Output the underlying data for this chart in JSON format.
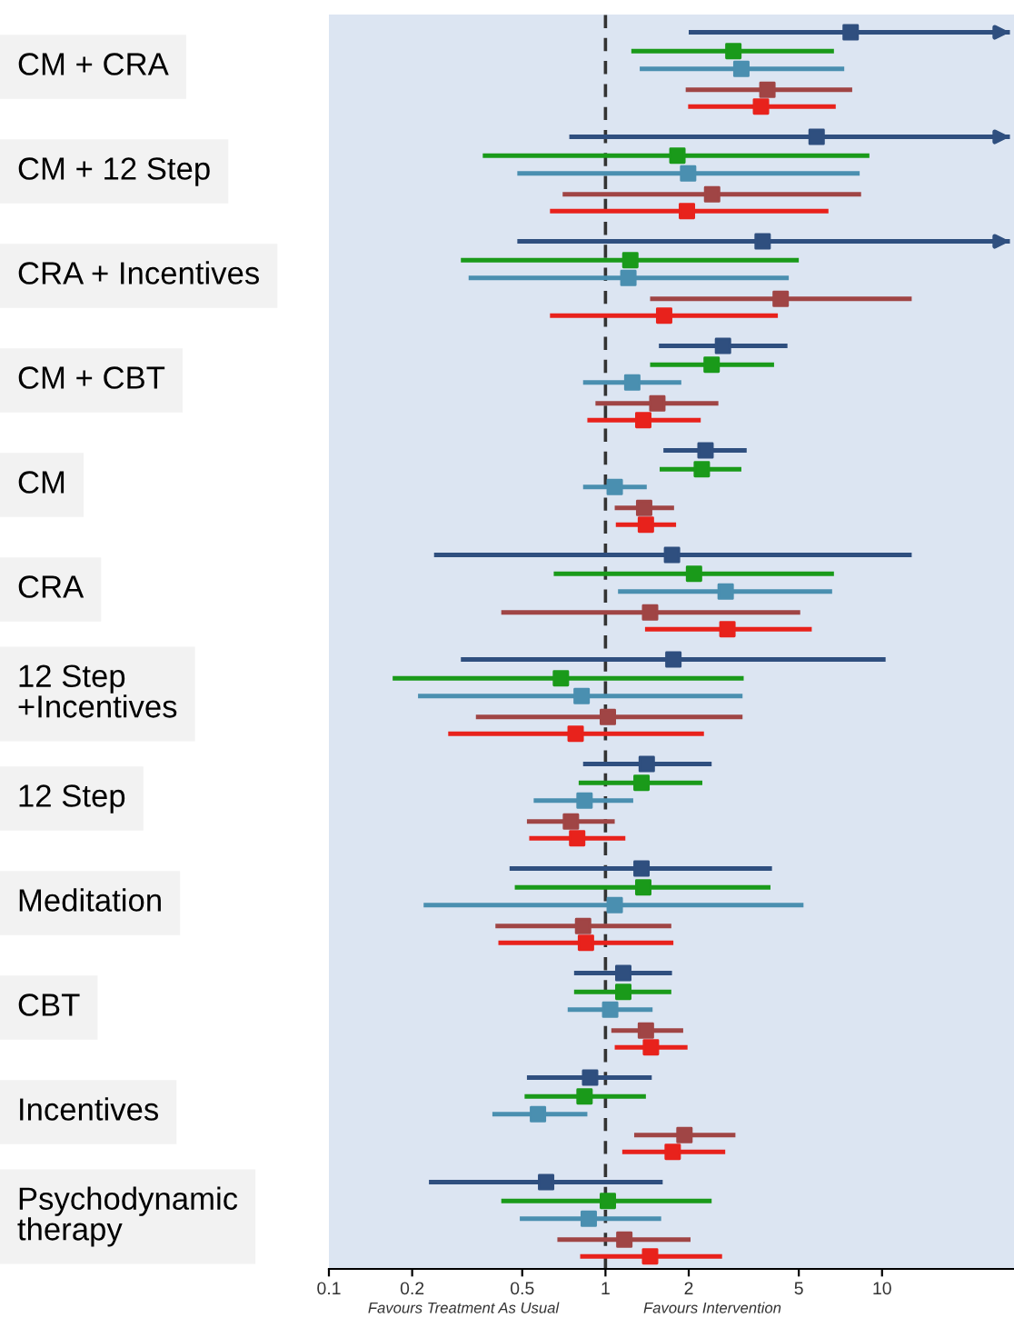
{
  "chart_data": {
    "type": "scatter",
    "orientation": "horizontal",
    "log": "x",
    "marker": "square",
    "categories": [
      "CM + CRA",
      "CM + 12 Step",
      "CRA + Incentives",
      "CM + CBT",
      "CM",
      "CRA",
      "12 Step\n+Incentives",
      "12 Step",
      "Meditation",
      "CBT",
      "Incentives",
      "Psychodynamic\ntherapy"
    ],
    "series": [
      {
        "color": "#2f4f7f",
        "values": [
          7.7,
          5.8,
          3.7,
          2.66,
          2.3,
          1.74,
          1.76,
          1.41,
          1.35,
          1.16,
          0.88,
          0.61
        ],
        "errors": [
          [
            2.0,
            29
          ],
          [
            0.74,
            29
          ],
          [
            0.48,
            29
          ],
          [
            1.56,
            4.55
          ],
          [
            1.62,
            3.24
          ],
          [
            0.24,
            12.8
          ],
          [
            0.3,
            10.3
          ],
          [
            0.83,
            2.42
          ],
          [
            0.45,
            4.0
          ],
          [
            0.77,
            1.74
          ],
          [
            0.52,
            1.47
          ],
          [
            0.23,
            1.61
          ]
        ]
      },
      {
        "color": "#1a9a1a",
        "values": [
          2.9,
          1.82,
          1.23,
          2.42,
          2.23,
          2.09,
          0.69,
          1.35,
          1.37,
          1.16,
          0.84,
          1.02
        ],
        "errors": [
          [
            1.24,
            6.7
          ],
          [
            0.36,
            9.0
          ],
          [
            0.3,
            5.0
          ],
          [
            1.45,
            4.07
          ],
          [
            1.57,
            3.1
          ],
          [
            0.65,
            6.7
          ],
          [
            0.17,
            3.16
          ],
          [
            0.8,
            2.24
          ],
          [
            0.47,
            3.95
          ],
          [
            0.77,
            1.73
          ],
          [
            0.51,
            1.4
          ],
          [
            0.42,
            2.42
          ]
        ]
      },
      {
        "color": "#4a8fb0",
        "values": [
          3.1,
          1.99,
          1.21,
          1.25,
          1.08,
          2.72,
          0.82,
          0.84,
          1.08,
          1.04,
          0.57,
          0.87
        ],
        "errors": [
          [
            1.33,
            7.3
          ],
          [
            0.48,
            8.3
          ],
          [
            0.32,
            4.6
          ],
          [
            0.83,
            1.88
          ],
          [
            0.83,
            1.41
          ],
          [
            1.11,
            6.6
          ],
          [
            0.21,
            3.13
          ],
          [
            0.55,
            1.26
          ],
          [
            0.22,
            5.2
          ],
          [
            0.73,
            1.48
          ],
          [
            0.39,
            0.86
          ],
          [
            0.49,
            1.59
          ]
        ]
      },
      {
        "color": "#a04545",
        "values": [
          3.85,
          2.43,
          4.3,
          1.54,
          1.38,
          1.45,
          1.02,
          0.75,
          0.83,
          1.4,
          1.93,
          1.17
        ],
        "errors": [
          [
            1.95,
            7.8
          ],
          [
            0.7,
            8.4
          ],
          [
            1.45,
            12.8
          ],
          [
            0.92,
            2.56
          ],
          [
            1.08,
            1.77
          ],
          [
            0.42,
            5.06
          ],
          [
            0.34,
            3.13
          ],
          [
            0.52,
            1.08
          ],
          [
            0.4,
            1.73
          ],
          [
            1.05,
            1.91
          ],
          [
            1.27,
            2.95
          ],
          [
            0.67,
            2.03
          ]
        ]
      },
      {
        "color": "#e8221c",
        "values": [
          3.65,
          1.97,
          1.63,
          1.37,
          1.4,
          2.76,
          0.78,
          0.79,
          0.85,
          1.46,
          1.75,
          1.45
        ],
        "errors": [
          [
            1.99,
            6.8
          ],
          [
            0.63,
            6.4
          ],
          [
            0.63,
            4.2
          ],
          [
            0.86,
            2.21
          ],
          [
            1.09,
            1.8
          ],
          [
            1.39,
            5.57
          ],
          [
            0.27,
            2.27
          ],
          [
            0.53,
            1.18
          ],
          [
            0.41,
            1.76
          ],
          [
            1.08,
            1.98
          ],
          [
            1.15,
            2.71
          ],
          [
            0.81,
            2.64
          ]
        ]
      }
    ],
    "xlim": [
      0.1,
      30
    ],
    "xticks": [
      0.1,
      0.2,
      0.5,
      1,
      2,
      5,
      10
    ],
    "tick_labels": "x",
    "grid": false,
    "legend": false,
    "ref_lines": [
      {
        "axis": "x",
        "value": 1,
        "line_style": "dashed",
        "color": "#333333"
      }
    ],
    "annotations": [
      "Favours Treatment As Usual",
      "Favours Intervention"
    ]
  }
}
